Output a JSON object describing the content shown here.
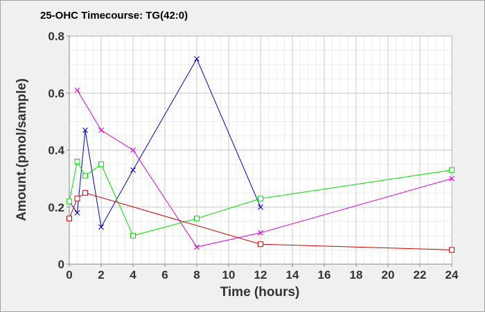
{
  "chart_data": {
    "type": "line",
    "title": "25-OHC Timecourse: TG(42:0)",
    "xlabel": "Time (hours)",
    "ylabel": "Amount.(pmol/sample)",
    "xlim": [
      0,
      24
    ],
    "ylim": [
      0,
      0.8
    ],
    "x_ticks": [
      "0",
      "2",
      "4",
      "6",
      "8",
      "10",
      "12",
      "14",
      "16",
      "18",
      "20",
      "22",
      "24"
    ],
    "y_ticks": [
      "0",
      "0.2",
      "0.4",
      "0.6",
      "0.8"
    ],
    "grid": true,
    "series": [
      {
        "color": "#0000cc",
        "marker": "x",
        "x": [
          0,
          0.5,
          1,
          2,
          4,
          8,
          12
        ],
        "y": [
          0.22,
          0.18,
          0.47,
          0.13,
          0.33,
          0.72,
          0.2
        ]
      },
      {
        "color": "#00dd00",
        "marker": "square",
        "x": [
          0,
          0.5,
          1,
          2,
          4,
          8,
          12,
          24
        ],
        "y": [
          0.22,
          0.36,
          0.31,
          0.35,
          0.1,
          0.16,
          0.23,
          0.33
        ]
      },
      {
        "color": "#dd00dd",
        "marker": "x",
        "x": [
          0.5,
          2,
          4,
          8,
          12,
          24
        ],
        "y": [
          0.61,
          0.47,
          0.4,
          0.06,
          0.11,
          0.3
        ]
      },
      {
        "color": "#cc0000",
        "marker": "square",
        "x": [
          0,
          0.5,
          1,
          12,
          24
        ],
        "y": [
          0.16,
          0.23,
          0.25,
          0.07,
          0.05
        ]
      }
    ]
  }
}
